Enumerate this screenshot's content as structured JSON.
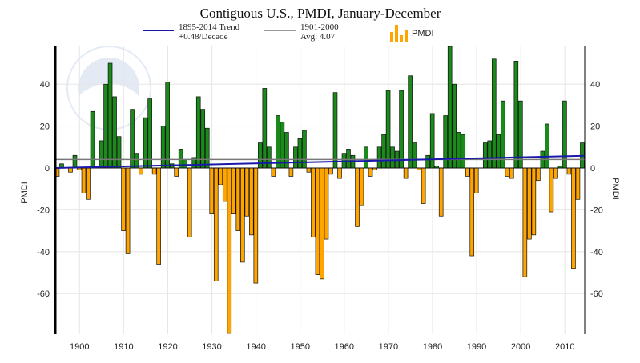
{
  "chart_data": {
    "type": "bar",
    "title": "Contiguous U.S., PMDI, January-December",
    "ylabel_left": "PMDI",
    "ylabel_right": "PMDI",
    "xlim": [
      1895,
      2014
    ],
    "ylim": [
      -80,
      58
    ],
    "x_ticks": [
      1900,
      1910,
      1920,
      1930,
      1940,
      1950,
      1960,
      1970,
      1980,
      1990,
      2000,
      2010
    ],
    "y_ticks": [
      -60,
      -40,
      -20,
      0,
      20,
      40
    ],
    "grid": true,
    "legend": {
      "trend_label": "1895-2014 Trend",
      "trend_rate": "+0.48/Decade",
      "avg_label": "1901-2000",
      "avg_value": "Avg: 4.07",
      "bar_label": "PMDI"
    },
    "colors": {
      "positive": "#1a8a1a",
      "negative": "#ffa500",
      "trend": "#1a1aa8",
      "average": "#777777"
    },
    "trend": {
      "start": [
        1895,
        0
      ],
      "end": [
        2014,
        5.8
      ]
    },
    "average_value": 4.07,
    "years": [
      1895,
      1896,
      1897,
      1898,
      1899,
      1900,
      1901,
      1902,
      1903,
      1904,
      1905,
      1906,
      1907,
      1908,
      1909,
      1910,
      1911,
      1912,
      1913,
      1914,
      1915,
      1916,
      1917,
      1918,
      1919,
      1920,
      1921,
      1922,
      1923,
      1924,
      1925,
      1926,
      1927,
      1928,
      1929,
      1930,
      1931,
      1932,
      1933,
      1934,
      1935,
      1936,
      1937,
      1938,
      1939,
      1940,
      1941,
      1942,
      1943,
      1944,
      1945,
      1946,
      1947,
      1948,
      1949,
      1950,
      1951,
      1952,
      1953,
      1954,
      1955,
      1956,
      1957,
      1958,
      1959,
      1960,
      1961,
      1962,
      1963,
      1964,
      1965,
      1966,
      1967,
      1968,
      1969,
      1970,
      1971,
      1972,
      1973,
      1974,
      1975,
      1976,
      1977,
      1978,
      1979,
      1980,
      1981,
      1982,
      1983,
      1984,
      1985,
      1986,
      1987,
      1988,
      1989,
      1990,
      1991,
      1992,
      1993,
      1994,
      1995,
      1996,
      1997,
      1998,
      1999,
      2000,
      2001,
      2002,
      2003,
      2004,
      2005,
      2006,
      2007,
      2008,
      2009,
      2010,
      2011,
      2012,
      2013,
      2014
    ],
    "values": [
      -4,
      2,
      0,
      -2,
      6,
      -1,
      -12,
      -15,
      27,
      0,
      13,
      40,
      50,
      34,
      15,
      -30,
      -41,
      28,
      7,
      -3,
      24,
      33,
      -3,
      -46,
      20,
      41,
      2,
      -4,
      9,
      4,
      -33,
      5,
      34,
      28,
      19,
      -22,
      -54,
      -8,
      -16,
      -79,
      -22,
      -30,
      -45,
      -23,
      -32,
      -55,
      12,
      38,
      10,
      -4,
      25,
      22,
      17,
      -4,
      10,
      14,
      18,
      -2,
      -33,
      -51,
      -53,
      -34,
      -3,
      36,
      -5,
      7,
      9,
      6,
      -28,
      -18,
      10,
      -4,
      -1,
      10,
      16,
      37,
      10,
      8,
      37,
      -5,
      44,
      12,
      -1,
      -17,
      6,
      26,
      1,
      -23,
      25,
      58,
      40,
      17,
      16,
      -4,
      -42,
      -12,
      0,
      12,
      13,
      52,
      16,
      32,
      -4,
      -5,
      51,
      32,
      -52,
      -34,
      -32,
      -6,
      8,
      21,
      -21,
      -5,
      1,
      32,
      -3,
      -48,
      -15,
      12
    ]
  }
}
